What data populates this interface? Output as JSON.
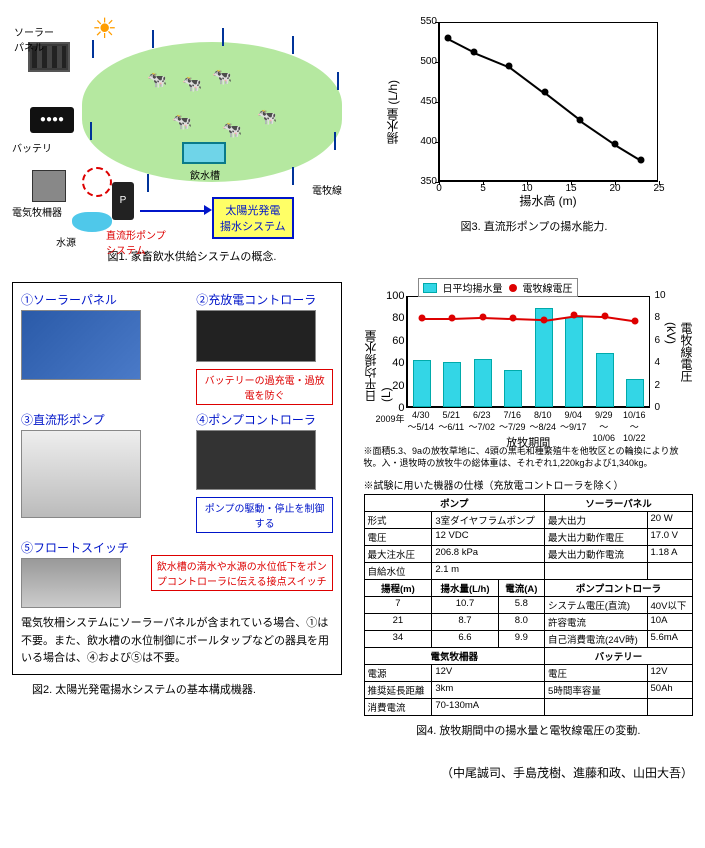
{
  "fig1": {
    "caption": "図1. 家畜飲水供給システムの概念.",
    "labels": {
      "solar_panel": "ソーラー\nパネル",
      "battery": "バッテリ",
      "fence_controller": "電気牧柵器",
      "water_source": "水源",
      "pump": "P",
      "pump_system": "直流形ポンプ\nシステム",
      "trough": "飲水槽",
      "fence_line": "電牧線",
      "system_box": "太陽光発電\n揚水システム"
    },
    "colors": {
      "pasture": "#b5e8a0",
      "sun": "#ff9d00",
      "box_border": "#0015c9",
      "box_fill": "#ffff66",
      "red": "#d00000",
      "water": "#4fc8ea"
    },
    "cattle_positions": [
      [
        135,
        58
      ],
      [
        170,
        62
      ],
      [
        200,
        55
      ],
      [
        160,
        100
      ],
      [
        210,
        108
      ],
      [
        245,
        95
      ]
    ]
  },
  "fig3": {
    "caption": "図3. 直流形ポンプの揚水能力.",
    "xlabel": "揚水高 (m)",
    "ylabel": "揚水量 (L/h)",
    "xlim": [
      0,
      25
    ],
    "ylim": [
      350,
      550
    ],
    "xticks": [
      0,
      5,
      10,
      15,
      20,
      25
    ],
    "yticks": [
      350,
      400,
      450,
      500,
      550
    ],
    "points": [
      [
        1,
        530
      ],
      [
        4,
        513
      ],
      [
        8,
        495
      ],
      [
        12,
        462
      ],
      [
        16,
        428
      ],
      [
        20,
        398
      ],
      [
        23,
        378
      ]
    ],
    "line_color": "#000000",
    "marker_color": "#000000",
    "background_color": "#ffffff",
    "font_size": 12
  },
  "fig2": {
    "caption": "図2. 太陽光発電揚水システムの基本構成機器.",
    "components": {
      "c1": "①ソーラーパネル",
      "c2": "②充放電コントローラ",
      "c3": "③直流形ポンプ",
      "c4": "④ポンプコントローラ",
      "c5": "⑤フロートスイッチ"
    },
    "notes": {
      "red": "バッテリーの過充電・過放電を防ぐ",
      "blue": "ポンプの駆動・停止を制御する",
      "float": "飲水槽の満水や水源の水位低下をポンプコントローラに伝える接点スイッチ"
    },
    "body_text": "電気牧柵システムにソーラーパネルが含まれている場合、①は不要。また、飲水槽の水位制御にボールタップなどの器具を用いる場合は、④および⑤は不要。"
  },
  "fig4": {
    "caption": "図4. 放牧期間中の揚水量と電牧線電圧の変動.",
    "legend": {
      "bar": "日平均揚水量",
      "line": "電牧線電圧"
    },
    "y1label": "日平均揚水量 (L)",
    "y2label": "電牧線電圧 (kV)",
    "xlabel": "放牧期間",
    "y1lim": [
      0,
      100
    ],
    "y2lim": [
      0,
      10
    ],
    "y1ticks": [
      0,
      20,
      40,
      60,
      80,
      100
    ],
    "y2ticks": [
      0,
      2,
      4,
      6,
      8,
      10
    ],
    "year_label": "2009年",
    "categories": [
      "4/30",
      "5/21",
      "6/23",
      "7/16",
      "8/10",
      "9/04",
      "9/29",
      "10/16"
    ],
    "date_ranges": [
      "～5/14",
      "～6/11",
      "～7/02",
      "～7/29",
      "～8/24",
      "～9/17",
      "～10/06",
      "～10/22"
    ],
    "bar_values": [
      42,
      40,
      43,
      33,
      88,
      80,
      48,
      25
    ],
    "line_values": [
      8.0,
      8.0,
      8.1,
      8.0,
      7.9,
      8.3,
      8.2,
      7.8
    ],
    "bar_color": "#33d6e6",
    "bar_border": "#0aa",
    "line_color": "#d00000",
    "footnote": "※面積5.3、9aの放牧草地に、4頭の黒毛和種繁殖牛を他牧区との輪換により放牧。入・退牧時の放牧牛の総体重は、それぞれ1,220kgおよび1,340kg。",
    "spec_title": "※試験に用いた機器の仕様（充放電コントローラを除く）",
    "spec": {
      "pump_header": "ポンプ",
      "panel_header": "ソーラーパネル",
      "pump": {
        "形式": "3室ダイヤフラムポンプ",
        "電圧": "12 VDC",
        "最大注水圧": "206.8 kPa",
        "自給水位": "2.1 m"
      },
      "panel": {
        "最大出力": "20 W",
        "最大出力動作電圧": "17.0 V",
        "最大出力動作電流": "1.18 A"
      },
      "pump_perf_header": {
        "h": "揚程(m)",
        "q": "揚水量(L/h)",
        "a": "電流(A)"
      },
      "pump_perf": [
        {
          "h": "7",
          "q": "10.7",
          "a": "5.8"
        },
        {
          "h": "21",
          "q": "8.7",
          "a": "8.0"
        },
        {
          "h": "34",
          "q": "6.6",
          "a": "9.9"
        }
      ],
      "pumpctrl_header": "ポンプコントローラ",
      "pumpctrl": {
        "システム電圧(直流)": "40V以下",
        "許容電流": "10A",
        "自己消費電流(24V時)": "5.6mA"
      },
      "fence_header": "電気牧柵器",
      "fence": {
        "電源": "12V",
        "推奨延長距離": "3km",
        "消費電流": "70-130mA"
      },
      "battery_header": "バッテリー",
      "battery": {
        "電圧": "12V",
        "5時間率容量": "50Ah"
      }
    }
  },
  "authors": "（中尾誠司、手島茂樹、進藤和政、山田大吾）"
}
